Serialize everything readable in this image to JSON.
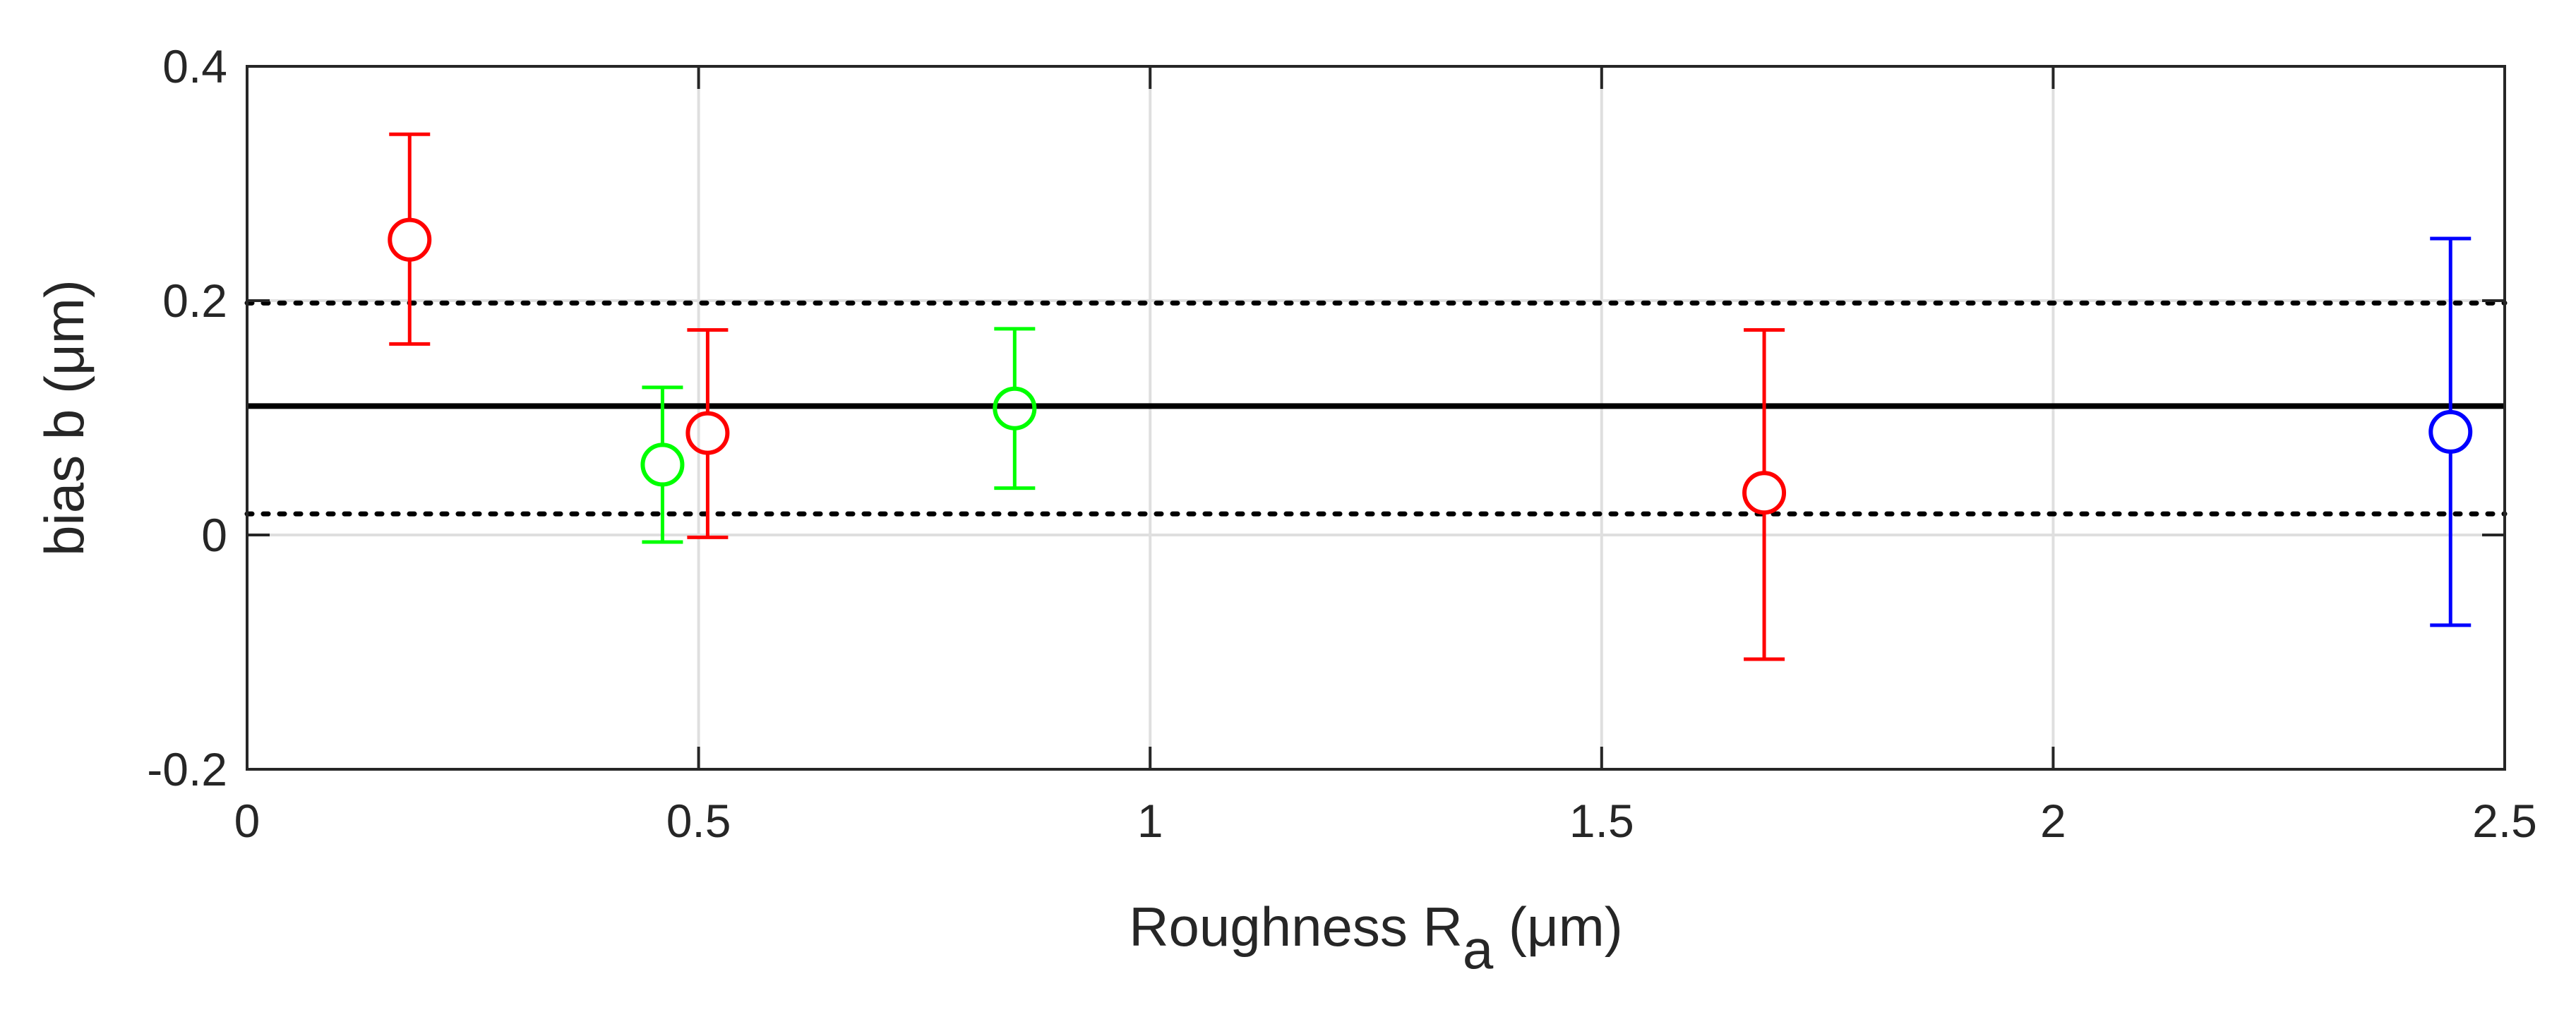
{
  "chart_data": {
    "type": "scatter",
    "xlabel": "Roughness R",
    "xlabel_sub": "a",
    "xlabel_unit": " (μm)",
    "ylabel": "bias b (μm)",
    "xlim": [
      0,
      2.5
    ],
    "ylim": [
      -0.2,
      0.4
    ],
    "xticks": [
      0,
      0.5,
      1,
      1.5,
      2,
      2.5
    ],
    "xtick_labels": [
      "0",
      "0.5",
      "1",
      "1.5",
      "2",
      "2.5"
    ],
    "yticks": [
      -0.2,
      0,
      0.2,
      0.4
    ],
    "ytick_labels": [
      "-0.2",
      "0",
      "0.2",
      "0.4"
    ],
    "grid": true,
    "reference_lines": {
      "mean": 0.11,
      "lower": 0.018,
      "upper": 0.198
    },
    "points": [
      {
        "x": 0.18,
        "y": 0.252,
        "low": 0.163,
        "high": 0.342,
        "color": "#ff0000"
      },
      {
        "x": 0.46,
        "y": 0.06,
        "low": -0.006,
        "high": 0.126,
        "color": "#00ff00"
      },
      {
        "x": 0.51,
        "y": 0.087,
        "low": -0.002,
        "high": 0.175,
        "color": "#ff0000"
      },
      {
        "x": 0.85,
        "y": 0.108,
        "low": 0.04,
        "high": 0.176,
        "color": "#00ff00"
      },
      {
        "x": 1.68,
        "y": 0.036,
        "low": -0.106,
        "high": 0.175,
        "color": "#ff0000"
      },
      {
        "x": 2.44,
        "y": 0.088,
        "low": -0.077,
        "high": 0.253,
        "color": "#0000ff"
      }
    ]
  }
}
